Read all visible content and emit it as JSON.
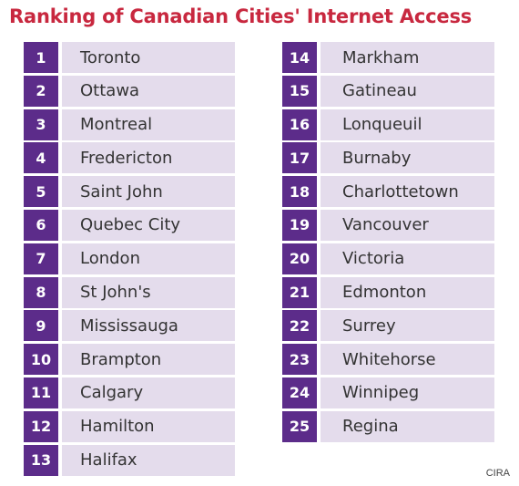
{
  "title": "Ranking of Canadian Cities' Internet Access",
  "rankings_left": [
    {
      "rank": "1",
      "city": "Toronto"
    },
    {
      "rank": "2",
      "city": "Ottawa"
    },
    {
      "rank": "3",
      "city": "Montreal"
    },
    {
      "rank": "4",
      "city": "Fredericton"
    },
    {
      "rank": "5",
      "city": "Saint John"
    },
    {
      "rank": "6",
      "city": "Quebec City"
    },
    {
      "rank": "7",
      "city": "London"
    },
    {
      "rank": "8",
      "city": "St John's"
    },
    {
      "rank": "9",
      "city": "Mississauga"
    },
    {
      "rank": "10",
      "city": "Brampton"
    },
    {
      "rank": "11",
      "city": "Calgary"
    },
    {
      "rank": "12",
      "city": "Hamilton"
    },
    {
      "rank": "13",
      "city": "Halifax"
    }
  ],
  "rankings_right": [
    {
      "rank": "14",
      "city": "Markham"
    },
    {
      "rank": "15",
      "city": "Gatineau"
    },
    {
      "rank": "16",
      "city": "Lonqueuil"
    },
    {
      "rank": "17",
      "city": "Burnaby"
    },
    {
      "rank": "18",
      "city": "Charlottetown"
    },
    {
      "rank": "19",
      "city": "Vancouver"
    },
    {
      "rank": "20",
      "city": "Victoria"
    },
    {
      "rank": "21",
      "city": "Edmonton"
    },
    {
      "rank": "22",
      "city": "Surrey"
    },
    {
      "rank": "23",
      "city": "Whitehorse"
    },
    {
      "rank": "24",
      "city": "Winnipeg"
    },
    {
      "rank": "25",
      "city": "Regina"
    }
  ],
  "source": "CIRA",
  "colors": {
    "title": "#c8283f",
    "rank_background": "#5c2c8a",
    "city_background": "#e4dcec"
  }
}
